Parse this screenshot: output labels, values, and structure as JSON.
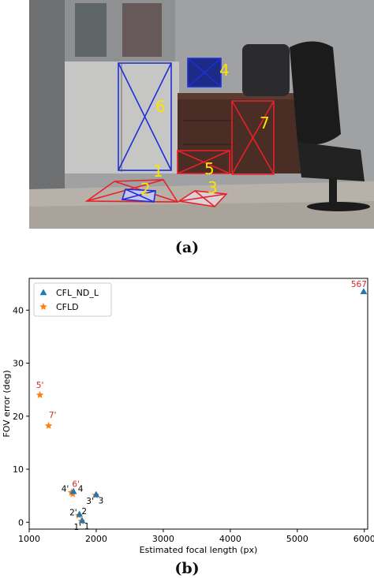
{
  "figure": {
    "caption_a": "(a)",
    "caption_b": "(b)",
    "colors": {
      "box_red": "#e8212b",
      "box_blue": "#1f2fd8",
      "label_yellow": "#ffe300"
    }
  },
  "photo_labels": [
    "1",
    "2",
    "3",
    "4",
    "5",
    "6",
    "7"
  ],
  "chart_data": {
    "type": "scatter",
    "xlabel": "Estimated focal length (px)",
    "ylabel": "FOV error (deg)",
    "xlim": [
      1000,
      6050
    ],
    "ylim": [
      -1.3,
      46
    ],
    "xticks": [
      1000,
      2000,
      3000,
      4000,
      5000,
      6000
    ],
    "yticks": [
      0,
      10,
      20,
      30,
      40
    ],
    "grid": false,
    "legend_position": "top-left",
    "series": [
      {
        "name": "CFL_ND_L",
        "marker": "triangle",
        "color": "#1f77b4",
        "points": [
          {
            "x": 5990,
            "y": 43.5,
            "label": "567",
            "label_color": "#d62728"
          }
        ]
      },
      {
        "name": "CFLD",
        "marker": "star",
        "color": "#ff7f0e",
        "points": [
          {
            "x": 1160,
            "y": 24.0,
            "label": "5'",
            "label_color": "#d62728"
          },
          {
            "x": 1290,
            "y": 18.2,
            "label": "7'",
            "label_color": "#d62728"
          },
          {
            "x": 1650,
            "y": 5.3,
            "label": "6'",
            "label_color": "#d62728"
          },
          {
            "x": 1630,
            "y": 5.6,
            "label": "4'",
            "label_color": "#000000"
          },
          {
            "x": 1990,
            "y": 5.1,
            "label": "3'",
            "label_color": "#000000"
          },
          {
            "x": 1740,
            "y": 1.3,
            "label": "2'",
            "label_color": "#000000"
          },
          {
            "x": 1780,
            "y": 0.2,
            "label": "1'",
            "label_color": "#000000"
          }
        ]
      },
      {
        "name": "",
        "marker": "triangle",
        "color": "#1f77b4",
        "points": [
          {
            "x": 1660,
            "y": 5.8,
            "label": "4",
            "label_color": "#000000"
          },
          {
            "x": 2000,
            "y": 5.2,
            "label": "3",
            "label_color": "#000000"
          },
          {
            "x": 1750,
            "y": 1.5,
            "label": "2",
            "label_color": "#000000"
          },
          {
            "x": 1790,
            "y": 0.3,
            "label": "1",
            "label_color": "#000000"
          }
        ]
      }
    ]
  }
}
